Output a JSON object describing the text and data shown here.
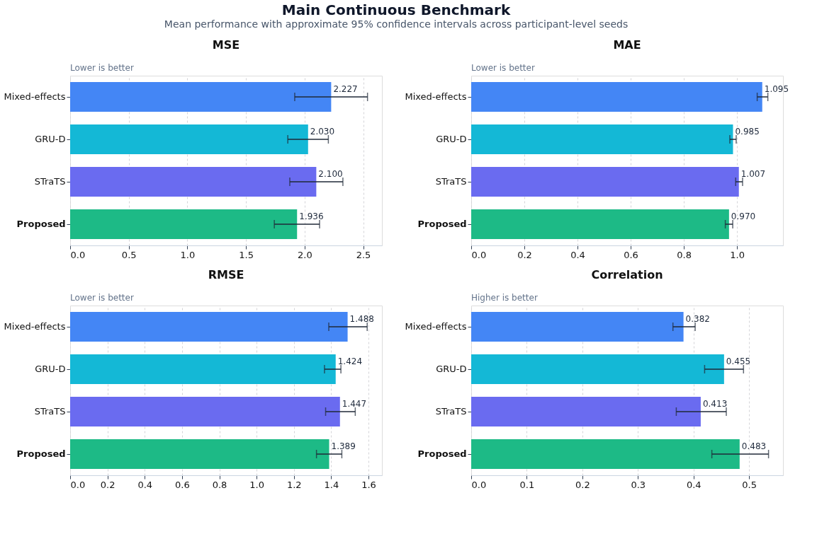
{
  "chart_data": [
    {
      "type": "bar",
      "orientation": "horizontal",
      "title": "MSE",
      "subtitle": "Lower is better",
      "annotations": [
        "Main Continuous Benchmark",
        "Mean performance with approximate 95% confidence intervals across participant-level seeds"
      ],
      "categories": [
        "Mixed-effects",
        "GRU-D",
        "STraTS",
        "Proposed"
      ],
      "values": [
        2.227,
        2.03,
        2.1,
        1.936
      ],
      "value_labels": [
        "2.227",
        "2.030",
        "2.100",
        "1.936"
      ],
      "errors": [
        [
          1.916,
          2.537
        ],
        [
          1.857,
          2.203
        ],
        [
          1.874,
          2.327
        ],
        [
          1.742,
          2.128
        ]
      ],
      "colors": [
        "#4486f5",
        "#14b8d6",
        "#6a6bf0",
        "#1dba86"
      ],
      "xlim": [
        0,
        2.66
      ],
      "xticks": [
        {
          "value": 0,
          "label": "0.0"
        },
        {
          "value": 0.5,
          "label": "0.5"
        },
        {
          "value": 1,
          "label": "1.0"
        },
        {
          "value": 1.5,
          "label": "1.5"
        },
        {
          "value": 2,
          "label": "2.0"
        },
        {
          "value": 2.5,
          "label": "2.5"
        }
      ],
      "grid": "x"
    },
    {
      "type": "bar",
      "orientation": "horizontal",
      "title": "MAE",
      "subtitle": "Lower is better",
      "categories": [
        "Mixed-effects",
        "GRU-D",
        "STraTS",
        "Proposed"
      ],
      "values": [
        1.095,
        0.985,
        1.007,
        0.97
      ],
      "value_labels": [
        "1.095",
        "0.985",
        "1.007",
        "0.970"
      ],
      "errors": [
        [
          1.076,
          1.116
        ],
        [
          0.973,
          0.997
        ],
        [
          0.995,
          1.021
        ],
        [
          0.956,
          0.984
        ]
      ],
      "colors": [
        "#4486f5",
        "#14b8d6",
        "#6a6bf0",
        "#1dba86"
      ],
      "xlim": [
        0,
        1.173
      ],
      "xticks": [
        {
          "value": 0,
          "label": "0.0"
        },
        {
          "value": 0.2,
          "label": "0.2"
        },
        {
          "value": 0.4,
          "label": "0.4"
        },
        {
          "value": 0.6,
          "label": "0.6"
        },
        {
          "value": 0.8,
          "label": "0.8"
        },
        {
          "value": 1,
          "label": "1.0"
        }
      ],
      "grid": "x"
    },
    {
      "type": "bar",
      "orientation": "horizontal",
      "title": "RMSE",
      "subtitle": "Lower is better",
      "categories": [
        "Mixed-effects",
        "GRU-D",
        "STraTS",
        "Proposed"
      ],
      "values": [
        1.488,
        1.424,
        1.447,
        1.389
      ],
      "value_labels": [
        "1.488",
        "1.424",
        "1.447",
        "1.389"
      ],
      "errors": [
        [
          1.387,
          1.593
        ],
        [
          1.364,
          1.452
        ],
        [
          1.37,
          1.529
        ],
        [
          1.321,
          1.457
        ]
      ],
      "colors": [
        "#4486f5",
        "#14b8d6",
        "#6a6bf0",
        "#1dba86"
      ],
      "xlim": [
        0,
        1.672
      ],
      "xticks": [
        {
          "value": 0,
          "label": "0.0"
        },
        {
          "value": 0.2,
          "label": "0.2"
        },
        {
          "value": 0.4,
          "label": "0.4"
        },
        {
          "value": 0.6,
          "label": "0.6"
        },
        {
          "value": 0.8,
          "label": "0.8"
        },
        {
          "value": 1,
          "label": "1.0"
        },
        {
          "value": 1.2,
          "label": "1.2"
        },
        {
          "value": 1.4,
          "label": "1.4"
        },
        {
          "value": 1.6,
          "label": "1.6"
        }
      ],
      "grid": "x"
    },
    {
      "type": "bar",
      "orientation": "horizontal",
      "title": "Correlation",
      "subtitle": "Higher is better",
      "categories": [
        "Mixed-effects",
        "GRU-D",
        "STraTS",
        "Proposed"
      ],
      "values": [
        0.382,
        0.455,
        0.413,
        0.483
      ],
      "value_labels": [
        "0.382",
        "0.455",
        "0.413",
        "0.483"
      ],
      "errors": [
        [
          0.363,
          0.403
        ],
        [
          0.42,
          0.49
        ],
        [
          0.369,
          0.459
        ],
        [
          0.433,
          0.535
        ]
      ],
      "colors": [
        "#4486f5",
        "#14b8d6",
        "#6a6bf0",
        "#1dba86"
      ],
      "xlim": [
        0,
        0.561
      ],
      "xticks": [
        {
          "value": 0,
          "label": "0.0"
        },
        0.1,
        0.2,
        0.3,
        0.4,
        0.5
      ],
      "grid": "x"
    }
  ]
}
